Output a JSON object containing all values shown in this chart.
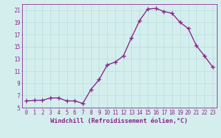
{
  "x": [
    0,
    1,
    2,
    3,
    4,
    5,
    6,
    7,
    8,
    9,
    10,
    11,
    12,
    13,
    14,
    15,
    16,
    17,
    18,
    19,
    20,
    21,
    22,
    23
  ],
  "y": [
    6.1,
    6.2,
    6.2,
    6.6,
    6.6,
    6.1,
    6.1,
    5.7,
    8.0,
    9.6,
    12.0,
    12.5,
    13.5,
    16.5,
    19.3,
    21.2,
    21.3,
    20.8,
    20.5,
    19.0,
    18.0,
    15.2,
    13.5,
    11.7
  ],
  "line_color": "#882288",
  "marker": "+",
  "markersize": 4,
  "linewidth": 1.0,
  "xlabel": "Windchill (Refroidissement éolien,°C)",
  "bg_color": "#d4eeee",
  "grid_color": "#b8dada",
  "ylim": [
    5,
    22
  ],
  "xlim": [
    -0.5,
    23.5
  ],
  "yticks": [
    5,
    7,
    9,
    11,
    13,
    15,
    17,
    19,
    21
  ],
  "xticks": [
    0,
    1,
    2,
    3,
    4,
    5,
    6,
    7,
    8,
    9,
    10,
    11,
    12,
    13,
    14,
    15,
    16,
    17,
    18,
    19,
    20,
    21,
    22,
    23
  ],
  "tick_fontsize": 5.5,
  "label_fontsize": 6.5,
  "spine_color": "#882288",
  "markeredgewidth": 1.0
}
